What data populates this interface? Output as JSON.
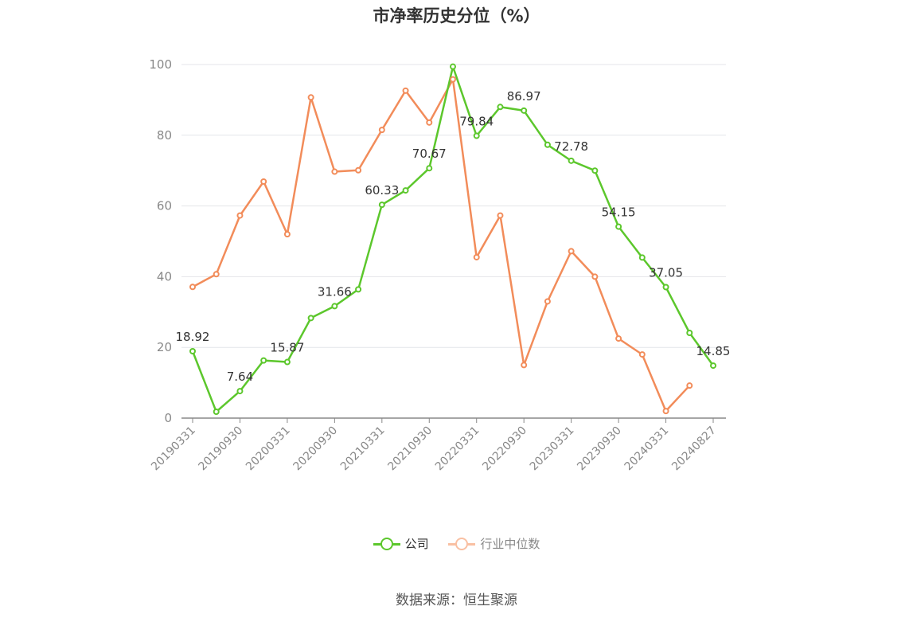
{
  "chart_data": {
    "type": "line",
    "title": "市净率历史分位（%）",
    "source": "数据来源：恒生聚源",
    "x": [
      "20190331",
      "20190630",
      "20190930",
      "20191231",
      "20200331",
      "20200630",
      "20200930",
      "20201231",
      "20210331",
      "20210630",
      "20210930",
      "20211231",
      "20220331",
      "20220630",
      "20220930",
      "20221231",
      "20230331",
      "20230630",
      "20230930",
      "20231231",
      "20240331",
      "20240630",
      "20240827"
    ],
    "x_tick_labels": [
      "20190331",
      "20190930",
      "20200331",
      "20200930",
      "20210331",
      "20210930",
      "20220331",
      "20220930",
      "20230331",
      "20230930",
      "20240331",
      "20240827"
    ],
    "ylim": [
      0,
      100
    ],
    "y_ticks": [
      "0",
      "20",
      "40",
      "60",
      "80",
      "100"
    ],
    "grid": true,
    "legend_position": "bottom",
    "series": [
      {
        "name": "公司",
        "color": "#5cc72c",
        "values": [
          18.92,
          1.8,
          7.64,
          16.3,
          15.87,
          28.3,
          31.66,
          36.4,
          60.33,
          64.4,
          70.67,
          99.4,
          79.84,
          88.0,
          86.97,
          77.3,
          72.78,
          70.0,
          54.15,
          45.4,
          37.05,
          24.1,
          14.85
        ],
        "labels": [
          "18.92",
          null,
          "7.64",
          null,
          "15.87",
          null,
          "31.66",
          null,
          "60.33",
          null,
          "70.67",
          null,
          "79.84",
          null,
          "86.97",
          null,
          "72.78",
          null,
          "54.15",
          null,
          "37.05",
          null,
          "14.85"
        ]
      },
      {
        "name": "行业中位数",
        "color": "#f28c5a",
        "values": [
          37.1,
          40.7,
          57.3,
          66.9,
          52.0,
          90.7,
          69.7,
          70.1,
          81.5,
          92.6,
          83.6,
          95.8,
          45.5,
          57.3,
          15.0,
          33.0,
          47.2,
          40.0,
          22.5,
          18.0,
          2.0,
          9.2,
          null
        ]
      }
    ]
  }
}
